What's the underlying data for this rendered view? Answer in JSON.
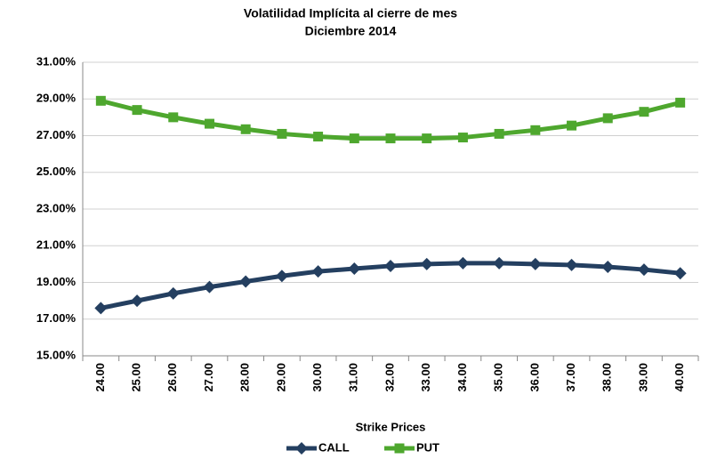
{
  "chart_data": {
    "type": "line",
    "title": "Volatilidad Implícita al cierre de mes",
    "subtitle": "Diciembre 2014",
    "x_label": "Strike Prices",
    "categories": [
      "24.00",
      "25.00",
      "26.00",
      "27.00",
      "28.00",
      "29.00",
      "30.00",
      "31.00",
      "32.00",
      "33.00",
      "34.00",
      "35.00",
      "36.00",
      "37.00",
      "38.00",
      "39.00",
      "40.00"
    ],
    "series": [
      {
        "name": "CALL",
        "color": "#243f60",
        "marker": "diamond",
        "values": [
          17.6,
          18.0,
          18.4,
          18.75,
          19.05,
          19.35,
          19.6,
          19.75,
          19.9,
          20.0,
          20.05,
          20.05,
          20.0,
          19.95,
          19.85,
          19.7,
          19.5
        ]
      },
      {
        "name": "PUT",
        "color": "#4ea72e",
        "marker": "square",
        "values": [
          28.9,
          28.4,
          28.0,
          27.65,
          27.35,
          27.1,
          26.95,
          26.85,
          26.85,
          26.85,
          26.9,
          27.1,
          27.3,
          27.55,
          27.95,
          28.3,
          28.8
        ]
      }
    ],
    "ylim": [
      15,
      31
    ],
    "yticks": [
      {
        "value": 15,
        "label": "15.00%"
      },
      {
        "value": 17,
        "label": "17.00%"
      },
      {
        "value": 19,
        "label": "19.00%"
      },
      {
        "value": 21,
        "label": "21.00%"
      },
      {
        "value": 23,
        "label": "23.00%"
      },
      {
        "value": 25,
        "label": "25.00%"
      },
      {
        "value": 27,
        "label": "27.00%"
      },
      {
        "value": 29,
        "label": "29.00%"
      },
      {
        "value": 31,
        "label": "31.00%"
      }
    ],
    "grid": true,
    "legend": "bottom"
  }
}
